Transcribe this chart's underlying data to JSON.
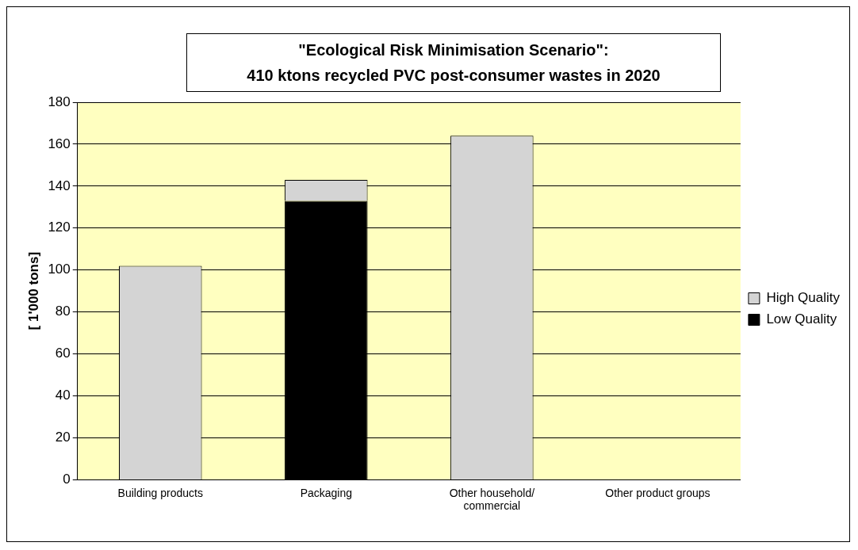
{
  "chart_data": {
    "type": "bar",
    "title": "\"Ecological Risk Minimisation Scenario\":",
    "subtitle": "410 ktons recycled PVC post-consumer wastes in 2020",
    "ylabel": "[ 1'000 tons]",
    "categories": [
      "Building products",
      "Packaging",
      "Other household/ commercial",
      "Other product groups"
    ],
    "series": [
      {
        "name": "Low Quality",
        "color": "#000000",
        "values": [
          0,
          133,
          0,
          0
        ]
      },
      {
        "name": "High Quality",
        "color": "#d4d4d4",
        "values": [
          102,
          10,
          164,
          0
        ]
      }
    ],
    "stacked": true,
    "ylim": [
      0,
      180
    ],
    "yticks": [
      0,
      20,
      40,
      60,
      80,
      100,
      120,
      140,
      160,
      180
    ],
    "grid": "y",
    "legend": "right"
  }
}
